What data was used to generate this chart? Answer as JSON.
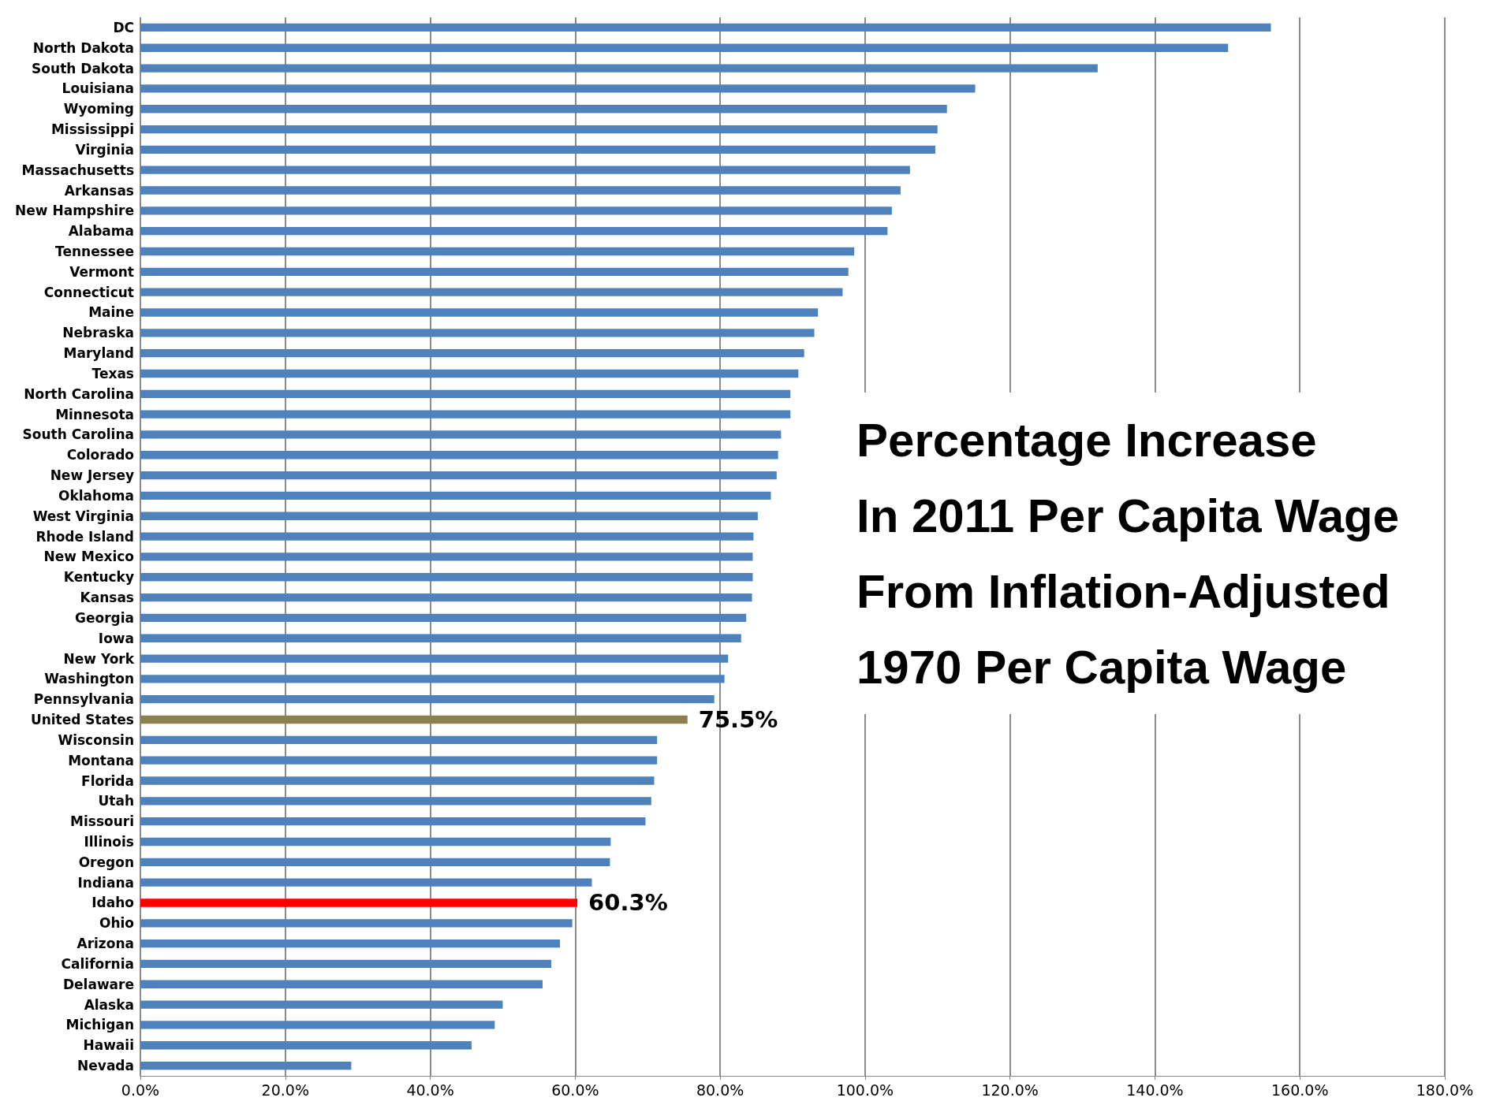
{
  "chart_data": {
    "type": "bar",
    "orientation": "horizontal",
    "title": "Percentage Increase\nIn 2011 Per Capita Wage\nFrom Inflation-Adjusted\n1970 Per Capita Wage",
    "categories": [
      "DC",
      "North Dakota",
      "South Dakota",
      "Louisiana",
      "Wyoming",
      "Mississippi",
      "Virginia",
      "Massachusetts",
      "Arkansas",
      "New Hampshire",
      "Alabama",
      "Tennessee",
      "Vermont",
      "Connecticut",
      "Maine",
      "Nebraska",
      "Maryland",
      "Texas",
      "North Carolina",
      "Minnesota",
      "South Carolina",
      "Colorado",
      "New Jersey",
      "Oklahoma",
      "West Virginia",
      "Rhode Island",
      "New Mexico",
      "Kentucky",
      "Kansas",
      "Georgia",
      "Iowa",
      "New York",
      "Washington",
      "Pennsylvania",
      "United States",
      "Wisconsin",
      "Montana",
      "Florida",
      "Utah",
      "Missouri",
      "Illinois",
      "Oregon",
      "Indiana",
      "Idaho",
      "Ohio",
      "Arizona",
      "California",
      "Delaware",
      "Alaska",
      "Michigan",
      "Hawaii",
      "Nevada"
    ],
    "values": [
      156.0,
      150.1,
      132.1,
      115.2,
      111.3,
      110.0,
      109.7,
      106.2,
      104.9,
      103.7,
      103.1,
      98.5,
      97.7,
      96.9,
      93.5,
      93.0,
      91.6,
      90.8,
      89.7,
      89.7,
      88.4,
      88.0,
      87.8,
      87.0,
      85.2,
      84.6,
      84.5,
      84.5,
      84.4,
      83.6,
      82.9,
      81.1,
      80.6,
      79.2,
      75.5,
      71.3,
      71.3,
      70.9,
      70.5,
      69.7,
      64.9,
      64.8,
      62.3,
      60.3,
      59.6,
      57.9,
      56.7,
      55.5,
      50.0,
      48.9,
      45.7,
      29.1
    ],
    "colors": [
      "#4f81bd",
      "#4f81bd",
      "#4f81bd",
      "#4f81bd",
      "#4f81bd",
      "#4f81bd",
      "#4f81bd",
      "#4f81bd",
      "#4f81bd",
      "#4f81bd",
      "#4f81bd",
      "#4f81bd",
      "#4f81bd",
      "#4f81bd",
      "#4f81bd",
      "#4f81bd",
      "#4f81bd",
      "#4f81bd",
      "#4f81bd",
      "#4f81bd",
      "#4f81bd",
      "#4f81bd",
      "#4f81bd",
      "#4f81bd",
      "#4f81bd",
      "#4f81bd",
      "#4f81bd",
      "#4f81bd",
      "#4f81bd",
      "#4f81bd",
      "#4f81bd",
      "#4f81bd",
      "#4f81bd",
      "#4f81bd",
      "#8b8150",
      "#4f81bd",
      "#4f81bd",
      "#4f81bd",
      "#4f81bd",
      "#4f81bd",
      "#4f81bd",
      "#4f81bd",
      "#4f81bd",
      "#ff0000",
      "#4f81bd",
      "#4f81bd",
      "#4f81bd",
      "#4f81bd",
      "#4f81bd",
      "#4f81bd",
      "#4f81bd",
      "#4f81bd"
    ],
    "value_labels": [
      null,
      null,
      null,
      null,
      null,
      null,
      null,
      null,
      null,
      null,
      null,
      null,
      null,
      null,
      null,
      null,
      null,
      null,
      null,
      null,
      null,
      null,
      null,
      null,
      null,
      null,
      null,
      null,
      null,
      null,
      null,
      null,
      null,
      null,
      "75.5%",
      null,
      null,
      null,
      null,
      null,
      null,
      null,
      null,
      "60.3%",
      null,
      null,
      null,
      null,
      null,
      null,
      null,
      null
    ],
    "xlim": [
      0,
      180
    ],
    "xticks": [
      {
        "value": 0,
        "label": "0.0%"
      },
      {
        "value": 20,
        "label": "20.0%"
      },
      {
        "value": 40,
        "label": "40.0%"
      },
      {
        "value": 60,
        "label": "60.0%"
      },
      {
        "value": 80,
        "label": "80.0%"
      },
      {
        "value": 100,
        "label": "100.0%"
      },
      {
        "value": 120,
        "label": "120.0%"
      },
      {
        "value": 140,
        "label": "140.0%"
      },
      {
        "value": 160,
        "label": "160.0%"
      },
      {
        "value": 180,
        "label": "180.0%"
      }
    ],
    "grid": "x"
  }
}
